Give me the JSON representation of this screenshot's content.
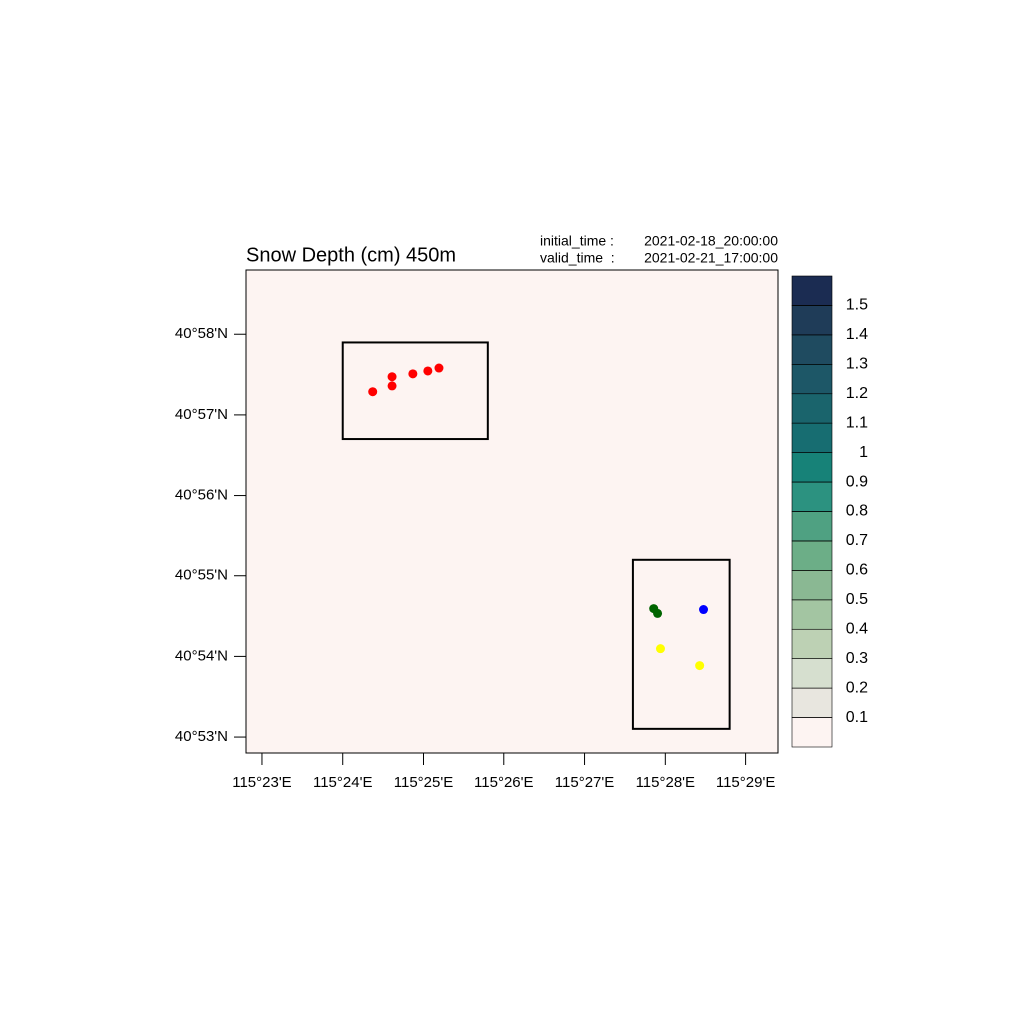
{
  "chart_data": {
    "type": "map",
    "title": "Snow Depth (cm) 450m",
    "time_info": [
      {
        "label": "initial_time :",
        "value": "2021-02-18_20:00:00"
      },
      {
        "label": "valid_time  :",
        "value": "2021-02-21_17:00:00"
      }
    ],
    "background": "#fdf4f2",
    "xlim": [
      115.38,
      115.49
    ],
    "ylim": [
      40.88,
      40.98
    ],
    "xticks": [
      {
        "value": 115.3833,
        "label": "115°23'E"
      },
      {
        "value": 115.4,
        "label": "115°24'E"
      },
      {
        "value": 115.4167,
        "label": "115°25'E"
      },
      {
        "value": 115.4333,
        "label": "115°26'E"
      },
      {
        "value": 115.45,
        "label": "115°27'E"
      },
      {
        "value": 115.4667,
        "label": "115°28'E"
      },
      {
        "value": 115.4833,
        "label": "115°29'E"
      }
    ],
    "yticks": [
      {
        "value": 40.9667,
        "label": "40°58'N"
      },
      {
        "value": 40.95,
        "label": "40°57'N"
      },
      {
        "value": 40.9333,
        "label": "40°56'N"
      },
      {
        "value": 40.9167,
        "label": "40°55'N"
      },
      {
        "value": 40.9,
        "label": "40°54'N"
      },
      {
        "value": 40.8833,
        "label": "40°53'N"
      }
    ],
    "boxes": [
      {
        "lon": [
          115.4,
          115.43
        ],
        "lat": [
          40.945,
          40.965
        ]
      },
      {
        "lon": [
          115.46,
          115.48
        ],
        "lat": [
          40.885,
          40.92
        ]
      }
    ],
    "series": [
      {
        "color": "#ff0000",
        "x": [
          115.4062,
          115.4102,
          115.4102,
          115.4145,
          115.4176,
          115.4199
        ],
        "values": [
          40.9548,
          40.956,
          40.9579,
          40.9585,
          40.9591,
          40.9597
        ]
      },
      {
        "color": "#006400",
        "x": [
          115.4643,
          115.4651
        ],
        "values": [
          40.9099,
          40.9089
        ]
      },
      {
        "color": "#0000ff",
        "x": [
          115.4746
        ],
        "values": [
          40.9097
        ]
      },
      {
        "color": "#ffff00",
        "x": [
          115.4657,
          115.4738
        ],
        "values": [
          40.9016,
          40.8981
        ]
      }
    ],
    "colorbar": {
      "levels": [
        0.1,
        0.2,
        0.3,
        0.4,
        0.5,
        0.6,
        0.7,
        0.8,
        0.9,
        1,
        1.1,
        1.2,
        1.3,
        1.4,
        1.5
      ],
      "colors": [
        "#fdf4f2",
        "#e8e6df",
        "#d6dfcf",
        "#bdd1b4",
        "#a3c5a2",
        "#8ab893",
        "#6cae87",
        "#4fa182",
        "#2c9280",
        "#178278",
        "#176d71",
        "#1a646c",
        "#1d5767",
        "#1f4b60",
        "#1f3c58",
        "#1b2c52"
      ]
    }
  }
}
